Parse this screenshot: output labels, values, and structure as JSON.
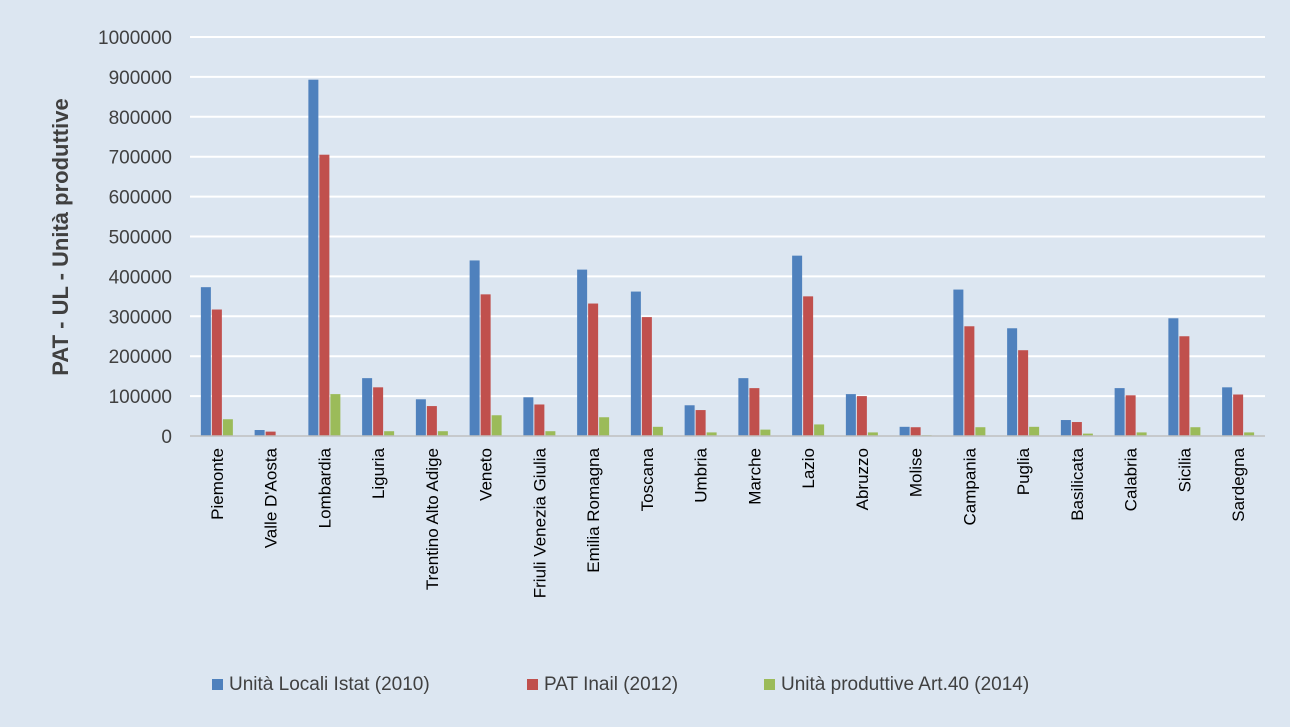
{
  "chart_data": {
    "type": "bar",
    "title": "",
    "xlabel": "",
    "ylabel": "PAT - UL - Unità produttive",
    "ylim": [
      0,
      1000000
    ],
    "yticks": [
      0,
      100000,
      200000,
      300000,
      400000,
      500000,
      600000,
      700000,
      800000,
      900000,
      1000000
    ],
    "grid": true,
    "legend_position": "bottom",
    "categories": [
      "Piemonte",
      "Valle D'Aosta",
      "Lombardia",
      "Liguria",
      "Trentino Alto Adige",
      "Veneto",
      "Friuli Venezia Giulia",
      "Emilia Romagna",
      "Toscana",
      "Umbria",
      "Marche",
      "Lazio",
      "Abruzzo",
      "Molise",
      "Campania",
      "Puglia",
      "Basilicata",
      "Calabria",
      "Sicilia",
      "Sardegna"
    ],
    "series": [
      {
        "name": "Unità Locali Istat (2010)",
        "color": "#4f81bd",
        "values": [
          373000,
          15000,
          893000,
          145000,
          92000,
          440000,
          97000,
          417000,
          362000,
          77000,
          145000,
          452000,
          105000,
          23000,
          367000,
          270000,
          40000,
          120000,
          295000,
          122000
        ]
      },
      {
        "name": "PAT Inail (2012)",
        "color": "#c0504d",
        "values": [
          317000,
          11000,
          705000,
          122000,
          75000,
          355000,
          79000,
          332000,
          298000,
          65000,
          120000,
          350000,
          100000,
          22000,
          275000,
          215000,
          35000,
          102000,
          250000,
          104000
        ]
      },
      {
        "name": "Unità produttive Art.40 (2014)",
        "color": "#9bbb59",
        "values": [
          42000,
          1000,
          105000,
          12000,
          12000,
          52000,
          12000,
          47000,
          23000,
          9000,
          16000,
          29000,
          9000,
          2000,
          22000,
          23000,
          6000,
          9000,
          22000,
          9000
        ]
      }
    ]
  }
}
